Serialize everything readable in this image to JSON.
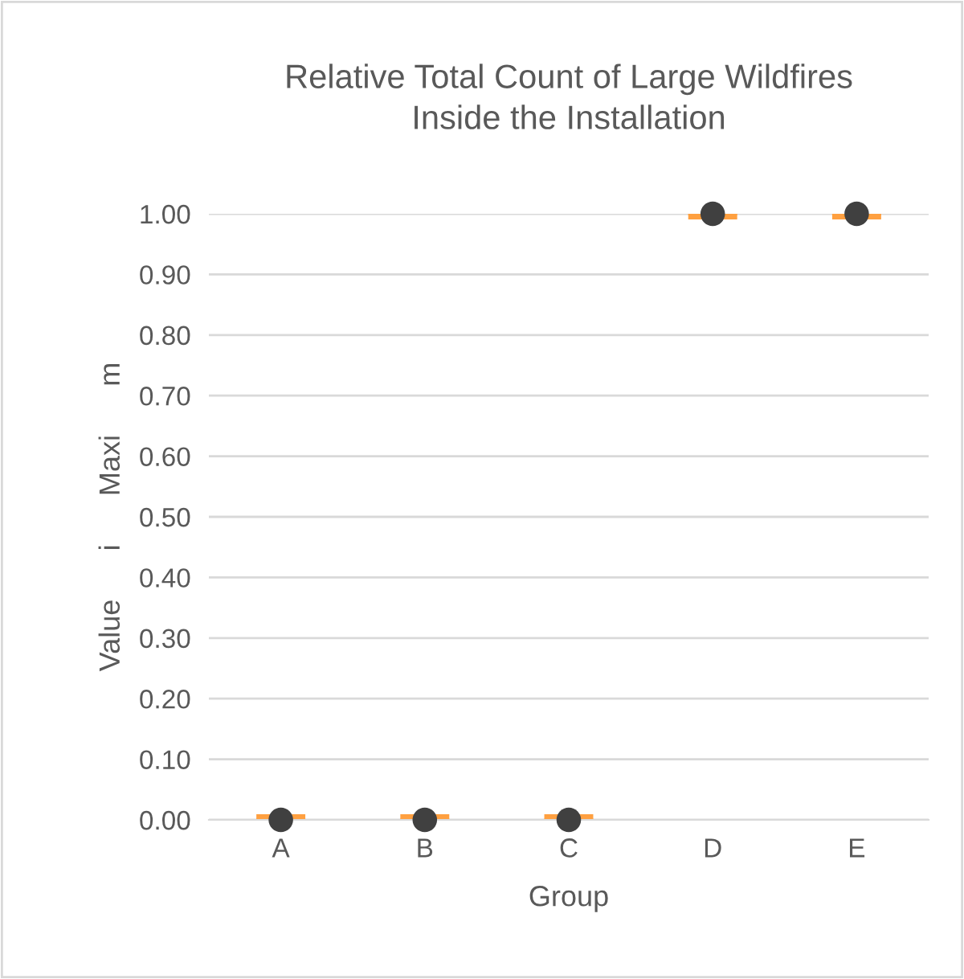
{
  "chart_data": {
    "type": "scatter",
    "title": "Relative Total Count of Large Wildfires\nInside the Installation",
    "xlabel": "Group",
    "ylabel": "Value      i      Maxi      m",
    "categories": [
      "A",
      "B",
      "C",
      "D",
      "E"
    ],
    "series": [
      {
        "color": "#404040",
        "marker": "circle",
        "values": [
          0,
          0,
          0,
          1,
          1
        ]
      },
      {
        "type": "box",
        "color": "#ffa040",
        "boxes": [
          {
            "low": 0,
            "q1": 0,
            "median": 0,
            "q3": 0,
            "high": 0
          },
          {
            "low": 0,
            "q1": 0,
            "median": 0,
            "q3": 0,
            "high": 0
          },
          {
            "low": 0,
            "q1": 0,
            "median": 0,
            "q3": 0,
            "high": 0
          },
          {
            "low": 1,
            "q1": 1,
            "median": 1,
            "q3": 1,
            "high": 1
          },
          {
            "low": 1,
            "q1": 1,
            "median": 1,
            "q3": 1,
            "high": 1
          }
        ]
      }
    ],
    "ylim": [
      0,
      1
    ],
    "yticks": [
      {
        "value": 0,
        "label": "0.00"
      },
      {
        "value": 0.1,
        "label": "0.10"
      },
      {
        "value": 0.2,
        "label": "0.20"
      },
      {
        "value": 0.3,
        "label": "0.30"
      },
      {
        "value": 0.4,
        "label": "0.40"
      },
      {
        "value": 0.5,
        "label": "0.50"
      },
      {
        "value": 0.6,
        "label": "0.60"
      },
      {
        "value": 0.7,
        "label": "0.70"
      },
      {
        "value": 0.8,
        "label": "0.80"
      },
      {
        "value": 0.9,
        "label": "0.90"
      },
      {
        "value": 1,
        "label": "1.00"
      }
    ],
    "grid": "y"
  }
}
